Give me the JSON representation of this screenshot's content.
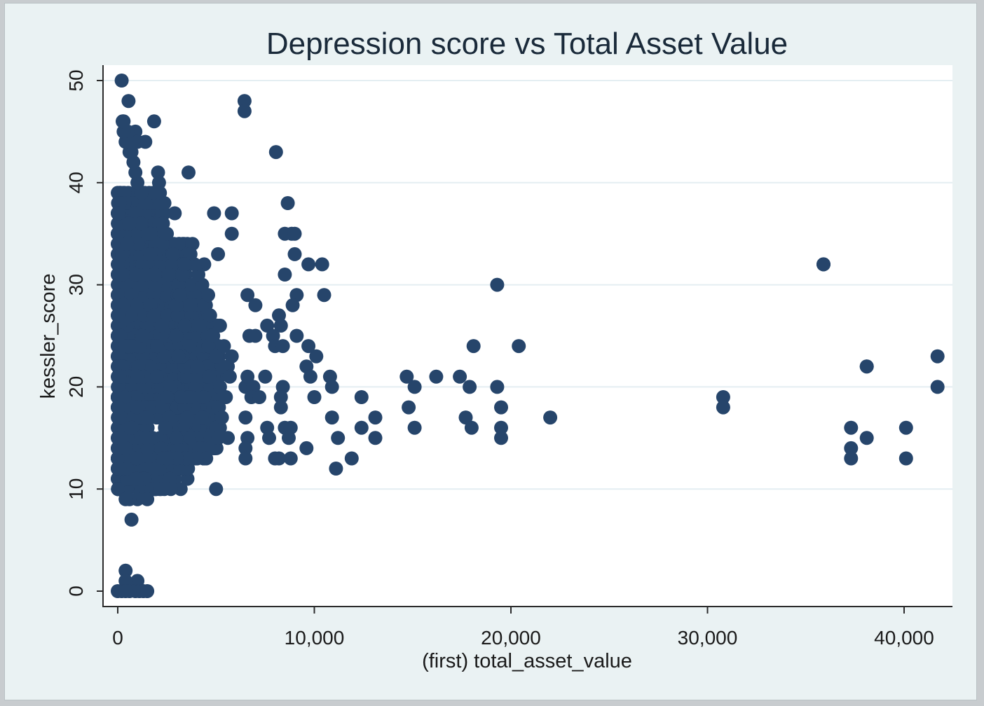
{
  "chart_data": {
    "type": "scatter",
    "title": "Depression score vs Total Asset Value",
    "xlabel": "(first) total_asset_value",
    "ylabel": "kessler_score",
    "xlim": [
      -500,
      42500
    ],
    "ylim": [
      -1.5,
      51.5
    ],
    "x_ticks": [
      0,
      10000,
      20000,
      30000,
      40000
    ],
    "x_tick_labels": [
      "0",
      "10,000",
      "20,000",
      "30,000",
      "40,000"
    ],
    "y_ticks": [
      0,
      10,
      20,
      30,
      40,
      50
    ],
    "y_tick_labels": [
      "0",
      "10",
      "20",
      "30",
      "40",
      "50"
    ],
    "grid": "horizontal",
    "marker_color": "#26456b",
    "background_color": "#ffffff",
    "outer_color": "#eaf2f3",
    "grid_color": "#e4eef2",
    "dense_cluster": {
      "description_count": 1600,
      "x_range": [
        0,
        5200
      ],
      "y_range": [
        9,
        40
      ]
    },
    "points": [
      [
        200,
        50
      ],
      [
        550,
        48
      ],
      [
        300,
        46
      ],
      [
        1850,
        46
      ],
      [
        6450,
        48
      ],
      [
        6450,
        47
      ],
      [
        900,
        45
      ],
      [
        1000,
        44
      ],
      [
        1400,
        44
      ],
      [
        600,
        43
      ],
      [
        2050,
        41
      ],
      [
        3600,
        41
      ],
      [
        2100,
        40
      ],
      [
        8050,
        43
      ],
      [
        8650,
        38
      ],
      [
        2900,
        37
      ],
      [
        4900,
        37
      ],
      [
        5800,
        37
      ],
      [
        5800,
        35
      ],
      [
        8500,
        35
      ],
      [
        8850,
        35
      ],
      [
        9000,
        35
      ],
      [
        5100,
        33
      ],
      [
        9000,
        33
      ],
      [
        3300,
        34
      ],
      [
        3800,
        34
      ],
      [
        4400,
        32
      ],
      [
        9700,
        32
      ],
      [
        10400,
        32
      ],
      [
        8500,
        31
      ],
      [
        19300,
        30
      ],
      [
        35900,
        32
      ],
      [
        35900,
        32
      ],
      [
        9100,
        29
      ],
      [
        10500,
        29
      ],
      [
        6600,
        29
      ],
      [
        7000,
        28
      ],
      [
        8900,
        28
      ],
      [
        8200,
        27
      ],
      [
        8300,
        26
      ],
      [
        7600,
        26
      ],
      [
        7900,
        25
      ],
      [
        6700,
        25
      ],
      [
        7000,
        25
      ],
      [
        9100,
        25
      ],
      [
        8000,
        24
      ],
      [
        8400,
        24
      ],
      [
        9700,
        24
      ],
      [
        18100,
        24
      ],
      [
        20400,
        24
      ],
      [
        41700,
        23
      ],
      [
        10100,
        23
      ],
      [
        9600,
        22
      ],
      [
        38100,
        22
      ],
      [
        38100,
        22
      ],
      [
        7500,
        21
      ],
      [
        9800,
        21
      ],
      [
        10800,
        21
      ],
      [
        14700,
        21
      ],
      [
        16200,
        21
      ],
      [
        17400,
        21
      ],
      [
        19300,
        20
      ],
      [
        15100,
        20
      ],
      [
        17900,
        20
      ],
      [
        41700,
        20
      ],
      [
        10900,
        20
      ],
      [
        6500,
        20
      ],
      [
        6600,
        21
      ],
      [
        6900,
        20
      ],
      [
        8400,
        20
      ],
      [
        8300,
        19
      ],
      [
        12400,
        19
      ],
      [
        30800,
        19
      ],
      [
        30800,
        18
      ],
      [
        14800,
        18
      ],
      [
        19500,
        18
      ],
      [
        10000,
        19
      ],
      [
        6800,
        19
      ],
      [
        7200,
        19
      ],
      [
        8300,
        18
      ],
      [
        22000,
        17
      ],
      [
        17700,
        17
      ],
      [
        13100,
        17
      ],
      [
        10900,
        17
      ],
      [
        6500,
        17
      ],
      [
        19500,
        16
      ],
      [
        15100,
        16
      ],
      [
        18000,
        16
      ],
      [
        12400,
        16
      ],
      [
        37300,
        16
      ],
      [
        40100,
        16
      ],
      [
        7600,
        16
      ],
      [
        8500,
        16
      ],
      [
        8800,
        16
      ],
      [
        19500,
        15
      ],
      [
        38100,
        15
      ],
      [
        13100,
        15
      ],
      [
        11200,
        15
      ],
      [
        6600,
        15
      ],
      [
        7700,
        15
      ],
      [
        8700,
        15
      ],
      [
        37300,
        14
      ],
      [
        9600,
        14
      ],
      [
        6500,
        14
      ],
      [
        37300,
        13
      ],
      [
        40100,
        13
      ],
      [
        11900,
        13
      ],
      [
        8000,
        13
      ],
      [
        8200,
        13
      ],
      [
        8800,
        13
      ],
      [
        6500,
        13
      ],
      [
        11100,
        12
      ],
      [
        5000,
        10
      ],
      [
        3200,
        10
      ],
      [
        2700,
        10
      ],
      [
        2200,
        10
      ],
      [
        1500,
        9
      ],
      [
        1000,
        9
      ],
      [
        600,
        9
      ],
      [
        400,
        9
      ],
      [
        700,
        7
      ],
      [
        400,
        2
      ],
      [
        1000,
        1
      ],
      [
        400,
        1
      ],
      [
        0,
        0
      ],
      [
        200,
        0
      ],
      [
        400,
        0
      ],
      [
        600,
        0
      ],
      [
        900,
        0
      ],
      [
        1100,
        0
      ],
      [
        1300,
        0
      ],
      [
        1500,
        0
      ],
      [
        5000,
        16
      ],
      [
        5100,
        18
      ],
      [
        5200,
        20
      ],
      [
        5300,
        22
      ],
      [
        5000,
        23
      ],
      [
        4800,
        25
      ],
      [
        4700,
        27
      ],
      [
        4600,
        29
      ],
      [
        5200,
        26
      ],
      [
        5400,
        24
      ],
      [
        5600,
        22
      ],
      [
        5800,
        23
      ],
      [
        5700,
        21
      ],
      [
        5500,
        19
      ],
      [
        5300,
        17
      ],
      [
        5100,
        15
      ],
      [
        5600,
        15
      ],
      [
        4200,
        14
      ],
      [
        4500,
        13
      ],
      [
        4000,
        13
      ],
      [
        3500,
        13
      ],
      [
        3000,
        13
      ],
      [
        2500,
        13
      ],
      [
        4300,
        30
      ],
      [
        4100,
        31
      ],
      [
        3900,
        32
      ],
      [
        3700,
        33
      ],
      [
        3400,
        32
      ],
      [
        3100,
        34
      ],
      [
        2800,
        33
      ],
      [
        2600,
        31
      ],
      [
        2500,
        35
      ],
      [
        2300,
        36
      ],
      [
        2200,
        38
      ],
      [
        2000,
        39
      ],
      [
        1800,
        39
      ],
      [
        1600,
        39
      ],
      [
        1400,
        38
      ],
      [
        1200,
        39
      ],
      [
        1000,
        40
      ],
      [
        900,
        41
      ],
      [
        800,
        42
      ],
      [
        700,
        43
      ],
      [
        600,
        44
      ],
      [
        500,
        45
      ],
      [
        400,
        44
      ],
      [
        300,
        45
      ],
      [
        250,
        46
      ]
    ]
  }
}
